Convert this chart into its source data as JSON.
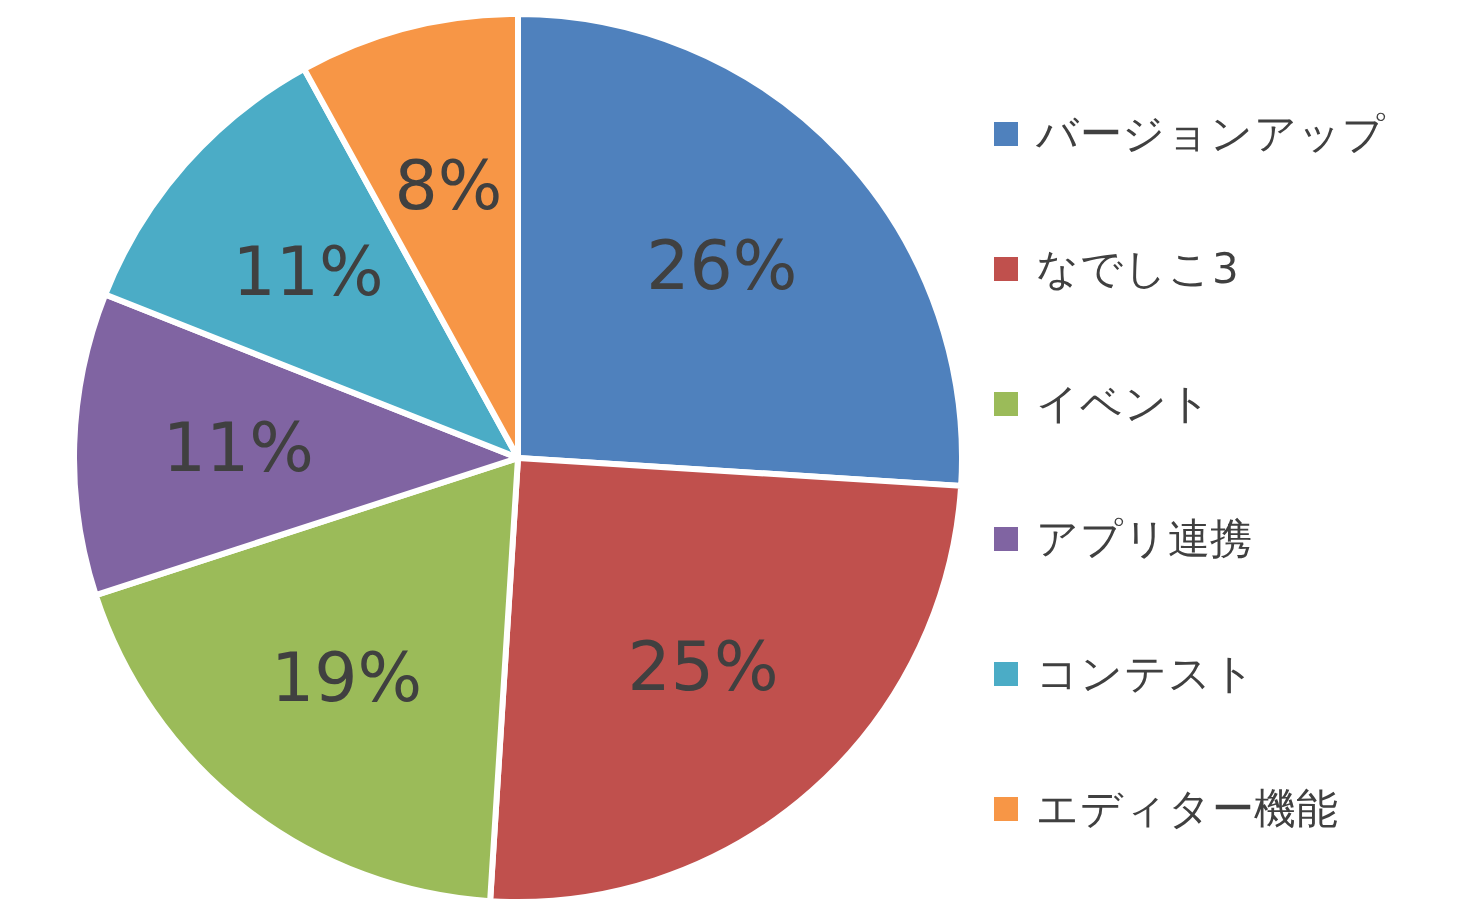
{
  "chart_data": {
    "type": "pie",
    "categories": [
      "バージョンアップ",
      "なでしこ3",
      "イベント",
      "アプリ連携",
      "コンテスト",
      "エディター機能"
    ],
    "values": [
      26,
      25,
      19,
      11,
      11,
      8
    ],
    "colors": [
      "#4f81bd",
      "#c0504d",
      "#9bbb59",
      "#8064a2",
      "#4bacc6",
      "#f79646"
    ],
    "value_labels": [
      "26%",
      "25%",
      "19%",
      "11%",
      "11%",
      "8%"
    ],
    "legend": "right"
  }
}
